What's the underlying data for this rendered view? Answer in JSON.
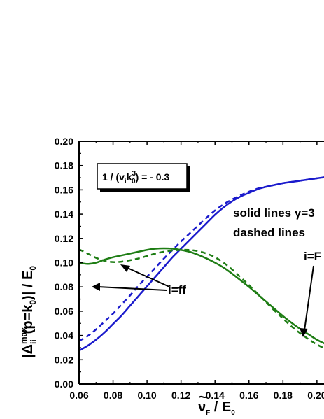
{
  "chart_data": {
    "type": "line",
    "title": "",
    "xlabel": {
      "main": "ν",
      "accent": "~",
      "sub": "F",
      "rest": " / E",
      "rest_sub": "0"
    },
    "ylabel": {
      "lead": "|Δ",
      "sup": "max",
      "sub": "ii",
      "mid": "(p=k",
      "mid_sub": "0",
      "tail": ")| / E",
      "tail_sub": "0"
    },
    "xlim": [
      0.06,
      0.205
    ],
    "ylim": [
      0.0,
      0.2
    ],
    "x_ticks": [
      "0.06",
      "0.08",
      "0.10",
      "0.12",
      "0.14",
      "0.16",
      "0.18",
      "0.20"
    ],
    "y_ticks": [
      "0.00",
      "0.02",
      "0.04",
      "0.06",
      "0.08",
      "0.10",
      "0.12",
      "0.14",
      "0.16",
      "0.18",
      "0.20"
    ],
    "colors": {
      "blue": "#1a1acc",
      "green": "#1e7d14",
      "axis": "#000000"
    },
    "inset_label": {
      "prefix": "1 / (v",
      "sub1": "i",
      "mid": "k",
      "sub2": "0",
      "sup2": "3",
      "suffix": ") = - 0.3"
    },
    "annotations": {
      "solid": "solid lines γ=3",
      "dashed": "dashed lines",
      "ff": "i=ff",
      "ff_partial": "i=F"
    },
    "series": [
      {
        "style": "solid",
        "color": "blue",
        "x": [
          0.06,
          0.065,
          0.07,
          0.075,
          0.08,
          0.085,
          0.09,
          0.095,
          0.1,
          0.105,
          0.11,
          0.115,
          0.12,
          0.125,
          0.13,
          0.135,
          0.14,
          0.145,
          0.15,
          0.155,
          0.16,
          0.165,
          0.17,
          0.175,
          0.18,
          0.185,
          0.19,
          0.195,
          0.2,
          0.205
        ],
        "y": [
          0.0275,
          0.0315,
          0.0365,
          0.0425,
          0.0495,
          0.0565,
          0.0645,
          0.0725,
          0.0805,
          0.0885,
          0.0965,
          0.1045,
          0.1115,
          0.1185,
          0.1255,
          0.1325,
          0.1395,
          0.1455,
          0.1505,
          0.1545,
          0.1575,
          0.1605,
          0.1625,
          0.164,
          0.1655,
          0.1665,
          0.1675,
          0.1685,
          0.1695,
          0.1705
        ]
      },
      {
        "style": "dashed",
        "color": "blue",
        "x": [
          0.06,
          0.065,
          0.07,
          0.075,
          0.08,
          0.085,
          0.09,
          0.095,
          0.1,
          0.105,
          0.11,
          0.115,
          0.12,
          0.125,
          0.13,
          0.135,
          0.14,
          0.145,
          0.15,
          0.155,
          0.16,
          0.165,
          0.17,
          0.175,
          0.18,
          0.185,
          0.19,
          0.195,
          0.2,
          0.205
        ],
        "y": [
          0.0355,
          0.0395,
          0.045,
          0.0515,
          0.058,
          0.0655,
          0.073,
          0.081,
          0.0885,
          0.096,
          0.1035,
          0.1105,
          0.1175,
          0.124,
          0.1305,
          0.137,
          0.143,
          0.148,
          0.152,
          0.1555,
          0.1585,
          0.161,
          0.1625,
          0.164,
          0.1655,
          0.1665,
          0.1675,
          0.1685,
          0.1695,
          0.1705
        ]
      },
      {
        "style": "solid",
        "color": "green",
        "x": [
          0.06,
          0.065,
          0.07,
          0.075,
          0.08,
          0.085,
          0.09,
          0.095,
          0.1,
          0.105,
          0.11,
          0.115,
          0.12,
          0.125,
          0.13,
          0.135,
          0.14,
          0.145,
          0.15,
          0.155,
          0.16,
          0.165,
          0.17,
          0.175,
          0.18,
          0.185,
          0.19,
          0.195,
          0.2,
          0.205
        ],
        "y": [
          0.1,
          0.099,
          0.1,
          0.1025,
          0.1045,
          0.106,
          0.1075,
          0.109,
          0.1105,
          0.1115,
          0.1118,
          0.1115,
          0.1105,
          0.109,
          0.1065,
          0.1035,
          0.1,
          0.096,
          0.091,
          0.0855,
          0.08,
          0.074,
          0.068,
          0.062,
          0.056,
          0.0505,
          0.0455,
          0.041,
          0.0365,
          0.033
        ]
      },
      {
        "style": "dashed",
        "color": "green",
        "x": [
          0.06,
          0.065,
          0.07,
          0.075,
          0.08,
          0.085,
          0.09,
          0.095,
          0.1,
          0.105,
          0.11,
          0.115,
          0.12,
          0.125,
          0.13,
          0.135,
          0.14,
          0.145,
          0.15,
          0.155,
          0.16,
          0.165,
          0.17,
          0.175,
          0.18,
          0.185,
          0.19,
          0.195,
          0.2,
          0.205
        ],
        "y": [
          0.111,
          0.1075,
          0.104,
          0.1015,
          0.1005,
          0.1008,
          0.102,
          0.1035,
          0.1055,
          0.1075,
          0.109,
          0.11,
          0.1105,
          0.1105,
          0.1095,
          0.1075,
          0.1045,
          0.1,
          0.0945,
          0.088,
          0.0815,
          0.0745,
          0.0675,
          0.0605,
          0.054,
          0.0475,
          0.042,
          0.037,
          0.0325,
          0.029
        ]
      }
    ]
  }
}
